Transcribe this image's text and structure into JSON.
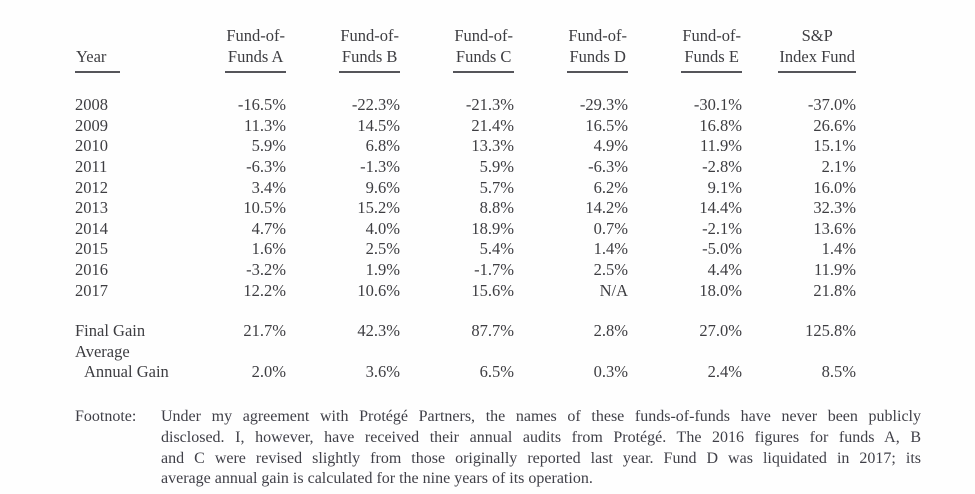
{
  "table": {
    "year_header": "Year",
    "fund_headers": [
      {
        "line1": "Fund-of-",
        "line2": "Funds A"
      },
      {
        "line1": "Fund-of-",
        "line2": "Funds B"
      },
      {
        "line1": "Fund-of-",
        "line2": "Funds C"
      },
      {
        "line1": "Fund-of-",
        "line2": "Funds D"
      },
      {
        "line1": "Fund-of-",
        "line2": "Funds E"
      },
      {
        "line1": "S&P",
        "line2": "Index Fund"
      }
    ],
    "rows": [
      {
        "year": "2008",
        "values": [
          "-16.5%",
          "-22.3%",
          "-21.3%",
          "-29.3%",
          "-30.1%",
          "-37.0%"
        ]
      },
      {
        "year": "2009",
        "values": [
          "11.3%",
          "14.5%",
          "21.4%",
          "16.5%",
          "16.8%",
          "26.6%"
        ]
      },
      {
        "year": "2010",
        "values": [
          "5.9%",
          "6.8%",
          "13.3%",
          "4.9%",
          "11.9%",
          "15.1%"
        ]
      },
      {
        "year": "2011",
        "values": [
          "-6.3%",
          "-1.3%",
          "5.9%",
          "-6.3%",
          "-2.8%",
          "2.1%"
        ]
      },
      {
        "year": "2012",
        "values": [
          "3.4%",
          "9.6%",
          "5.7%",
          "6.2%",
          "9.1%",
          "16.0%"
        ]
      },
      {
        "year": "2013",
        "values": [
          "10.5%",
          "15.2%",
          "8.8%",
          "14.2%",
          "14.4%",
          "32.3%"
        ]
      },
      {
        "year": "2014",
        "values": [
          "4.7%",
          "4.0%",
          "18.9%",
          "0.7%",
          "-2.1%",
          "13.6%"
        ]
      },
      {
        "year": "2015",
        "values": [
          "1.6%",
          "2.5%",
          "5.4%",
          "1.4%",
          "-5.0%",
          "1.4%"
        ]
      },
      {
        "year": "2016",
        "values": [
          "-3.2%",
          "1.9%",
          "-1.7%",
          "2.5%",
          "4.4%",
          "11.9%"
        ]
      },
      {
        "year": "2017",
        "values": [
          "12.2%",
          "10.6%",
          "15.6%",
          "N/A",
          "18.0%",
          "21.8%"
        ]
      }
    ],
    "final_gain": {
      "label": "Final Gain",
      "values": [
        "21.7%",
        "42.3%",
        "87.7%",
        "2.8%",
        "27.0%",
        "125.8%"
      ]
    },
    "average_annual_gain": {
      "label_line1": "Average",
      "label_line2": "Annual Gain",
      "values": [
        "2.0%",
        "3.6%",
        "6.5%",
        "0.3%",
        "2.4%",
        "8.5%"
      ]
    }
  },
  "footnote": {
    "label": "Footnote:",
    "lines": [
      "Under my agreement with Protégé Partners, the names of these funds-of-funds have never been publicly",
      "disclosed. I, however, have received their annual audits from Protégé. The 2016 figures for funds A, B",
      "and C were revised slightly from those originally reported last year. Fund D was liquidated in 2017; its",
      "average annual gain is calculated for the nine years of its operation."
    ]
  },
  "colors": {
    "text": "#3d3d41",
    "underline": "#55555a",
    "background": "#fefefe"
  }
}
